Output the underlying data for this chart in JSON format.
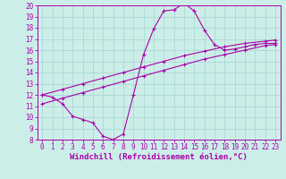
{
  "bg_color": "#cceee8",
  "grid_color": "#aad8d4",
  "line_color": "#aa00aa",
  "xlabel": "Windchill (Refroidissement éolien,°C)",
  "xlim": [
    -0.5,
    23.5
  ],
  "ylim": [
    8,
    20
  ],
  "xticks": [
    0,
    1,
    2,
    3,
    4,
    5,
    6,
    7,
    8,
    9,
    10,
    11,
    12,
    13,
    14,
    15,
    16,
    17,
    18,
    19,
    20,
    21,
    22,
    23
  ],
  "yticks": [
    8,
    9,
    10,
    11,
    12,
    13,
    14,
    15,
    16,
    17,
    18,
    19,
    20
  ],
  "curve1_x": [
    0,
    1,
    2,
    3,
    4,
    5,
    6,
    7,
    8,
    9,
    10,
    11,
    12,
    13,
    14,
    15,
    16,
    17,
    18,
    19,
    20,
    21,
    22,
    23
  ],
  "curve1_y": [
    12.0,
    11.8,
    11.2,
    10.1,
    9.8,
    9.5,
    8.3,
    8.0,
    8.5,
    12.0,
    15.6,
    17.9,
    19.5,
    19.6,
    20.2,
    19.5,
    17.8,
    16.5,
    16.0,
    16.1,
    16.3,
    16.5,
    16.6,
    16.6
  ],
  "curve2_x": [
    0,
    2,
    4,
    6,
    8,
    10,
    12,
    14,
    16,
    18,
    20,
    22,
    23
  ],
  "curve2_y": [
    11.2,
    11.7,
    12.2,
    12.7,
    13.2,
    13.7,
    14.2,
    14.7,
    15.2,
    15.6,
    16.0,
    16.4,
    16.5
  ],
  "curve3_x": [
    0,
    2,
    4,
    6,
    8,
    10,
    12,
    14,
    16,
    18,
    20,
    22,
    23
  ],
  "curve3_y": [
    12.0,
    12.5,
    13.0,
    13.5,
    14.0,
    14.5,
    15.0,
    15.5,
    15.9,
    16.3,
    16.6,
    16.8,
    16.9
  ],
  "tick_fontsize": 5.5,
  "label_fontsize": 6.5,
  "marker_size": 2.5,
  "line_width": 0.8
}
